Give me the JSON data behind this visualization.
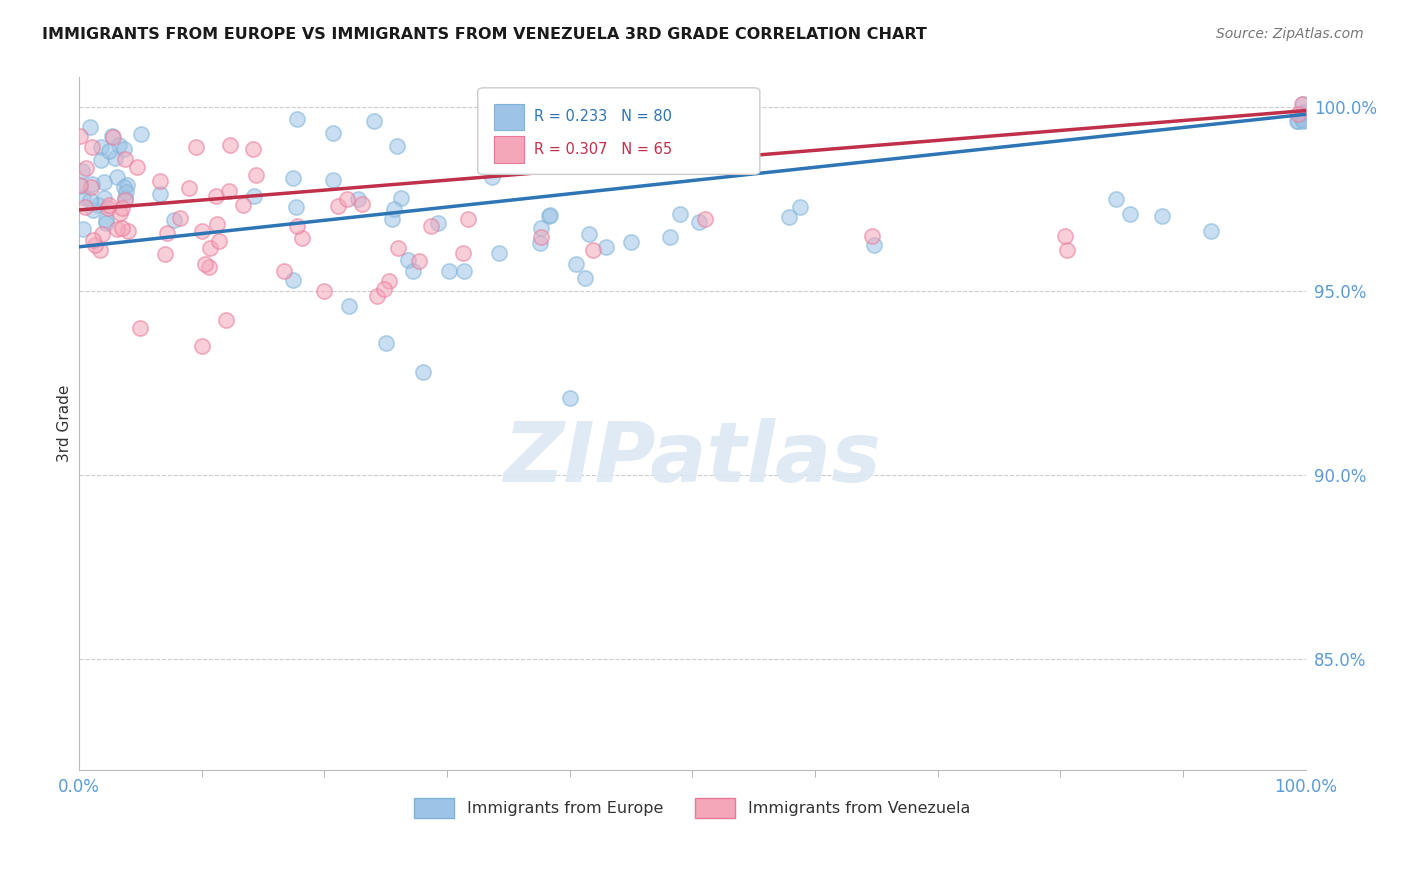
{
  "title": "IMMIGRANTS FROM EUROPE VS IMMIGRANTS FROM VENEZUELA 3RD GRADE CORRELATION CHART",
  "source": "Source: ZipAtlas.com",
  "ylabel": "3rd Grade",
  "xlim": [
    0.0,
    1.0
  ],
  "ylim": [
    0.82,
    1.008
  ],
  "yticks": [
    0.85,
    0.9,
    0.95,
    1.0
  ],
  "ytick_labels": [
    "85.0%",
    "90.0%",
    "95.0%",
    "100.0%"
  ],
  "xtick_labels": [
    "0.0%",
    "100.0%"
  ],
  "background_color": "#ffffff",
  "grid_color": "#cccccc",
  "axis_color": "#5b9bd5",
  "blue_color": "#9dc3e6",
  "pink_color": "#f4a7b9",
  "blue_edge_color": "#7eb3d9",
  "pink_edge_color": "#e87899",
  "blue_line_color": "#2e75b6",
  "pink_line_color": "#c0304a",
  "blue_trend": [
    0.0,
    0.962,
    1.0,
    0.998
  ],
  "pink_trend": [
    0.0,
    0.972,
    1.0,
    0.999
  ],
  "watermark_text": "ZIPatlas",
  "watermark_color": "#dce8f3",
  "legend_blue_text": "R = 0.233   N = 80",
  "legend_pink_text": "R = 0.307   N = 65",
  "bottom_legend_blue": "Immigrants from Europe",
  "bottom_legend_pink": "Immigrants from Venezuela",
  "marker_size": 120,
  "blue_alpha": 0.55,
  "pink_alpha": 0.55
}
